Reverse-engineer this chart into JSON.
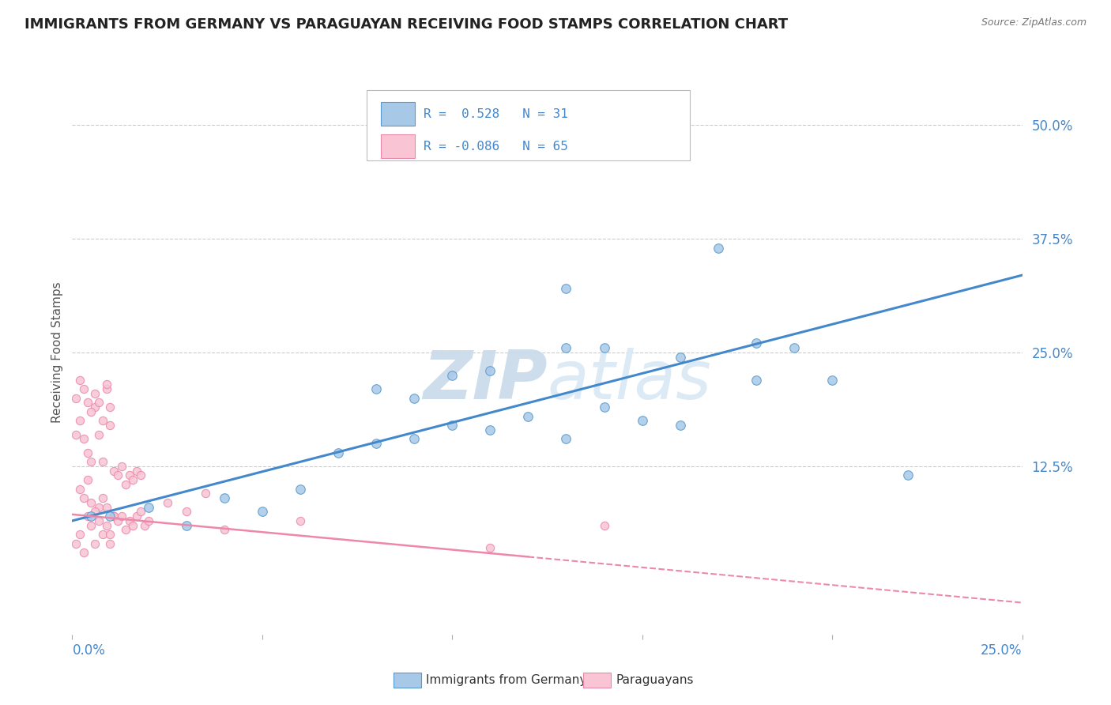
{
  "title": "IMMIGRANTS FROM GERMANY VS PARAGUAYAN RECEIVING FOOD STAMPS CORRELATION CHART",
  "source": "Source: ZipAtlas.com",
  "ylabel": "Receiving Food Stamps",
  "right_yticks": [
    "50.0%",
    "37.5%",
    "25.0%",
    "12.5%"
  ],
  "right_ytick_vals": [
    0.5,
    0.375,
    0.25,
    0.125
  ],
  "legend_label1": "Immigrants from Germany",
  "legend_label2": "Paraguayans",
  "blue_color": "#a8c8e8",
  "pink_color": "#f9c4d4",
  "blue_edge_color": "#5599cc",
  "pink_edge_color": "#e888aa",
  "blue_line_color": "#4488cc",
  "pink_line_color": "#ee88aa",
  "watermark_color": "#dde8f0",
  "blue_scatter_x": [
    0.005,
    0.01,
    0.02,
    0.03,
    0.04,
    0.05,
    0.06,
    0.07,
    0.08,
    0.09,
    0.1,
    0.11,
    0.12,
    0.13,
    0.14,
    0.08,
    0.09,
    0.1,
    0.11,
    0.13,
    0.15,
    0.16,
    0.17,
    0.14,
    0.13,
    0.18,
    0.16,
    0.18,
    0.2,
    0.22,
    0.19
  ],
  "blue_scatter_y": [
    0.07,
    0.07,
    0.08,
    0.06,
    0.09,
    0.075,
    0.1,
    0.14,
    0.15,
    0.155,
    0.17,
    0.165,
    0.18,
    0.155,
    0.19,
    0.21,
    0.2,
    0.225,
    0.23,
    0.255,
    0.175,
    0.245,
    0.365,
    0.255,
    0.32,
    0.22,
    0.17,
    0.26,
    0.22,
    0.115,
    0.255
  ],
  "pink_scatter_x": [
    0.001,
    0.002,
    0.003,
    0.004,
    0.005,
    0.006,
    0.007,
    0.008,
    0.009,
    0.01,
    0.002,
    0.003,
    0.004,
    0.005,
    0.006,
    0.007,
    0.008,
    0.009,
    0.01,
    0.011,
    0.001,
    0.002,
    0.003,
    0.004,
    0.005,
    0.006,
    0.007,
    0.008,
    0.009,
    0.01,
    0.011,
    0.012,
    0.013,
    0.014,
    0.015,
    0.016,
    0.017,
    0.018,
    0.019,
    0.02,
    0.001,
    0.002,
    0.003,
    0.004,
    0.005,
    0.006,
    0.007,
    0.008,
    0.009,
    0.01,
    0.011,
    0.012,
    0.013,
    0.014,
    0.015,
    0.016,
    0.017,
    0.018,
    0.025,
    0.03,
    0.035,
    0.04,
    0.06,
    0.11,
    0.14
  ],
  "pink_scatter_y": [
    0.04,
    0.05,
    0.03,
    0.07,
    0.06,
    0.04,
    0.08,
    0.05,
    0.06,
    0.04,
    0.1,
    0.09,
    0.11,
    0.085,
    0.075,
    0.065,
    0.09,
    0.08,
    0.05,
    0.07,
    0.16,
    0.175,
    0.155,
    0.14,
    0.13,
    0.19,
    0.16,
    0.13,
    0.21,
    0.17,
    0.07,
    0.065,
    0.07,
    0.055,
    0.065,
    0.06,
    0.07,
    0.075,
    0.06,
    0.065,
    0.2,
    0.22,
    0.21,
    0.195,
    0.185,
    0.205,
    0.195,
    0.175,
    0.215,
    0.19,
    0.12,
    0.115,
    0.125,
    0.105,
    0.115,
    0.11,
    0.12,
    0.115,
    0.085,
    0.075,
    0.095,
    0.055,
    0.065,
    0.035,
    0.06
  ],
  "blue_line_x0": 0.0,
  "blue_line_y0": 0.065,
  "blue_line_x1": 0.25,
  "blue_line_y1": 0.335,
  "pink_line_x0": 0.0,
  "pink_line_y0": 0.072,
  "pink_line_x1": 0.25,
  "pink_line_y1": -0.025,
  "xlim": [
    0.0,
    0.25
  ],
  "ylim": [
    -0.06,
    0.56
  ],
  "background_color": "#ffffff",
  "grid_color": "#cccccc",
  "title_color": "#222222",
  "axis_label_color": "#555555",
  "right_tick_color": "#4488cc"
}
